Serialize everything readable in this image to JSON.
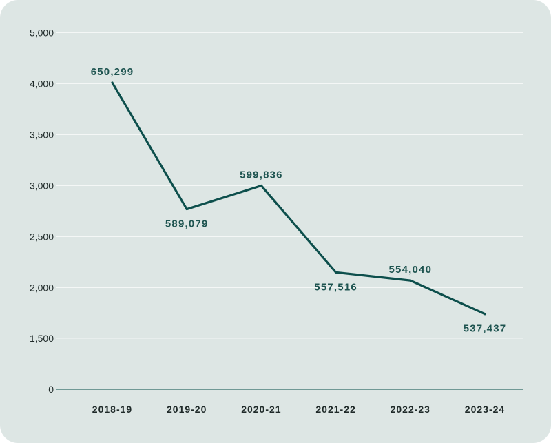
{
  "chart_data": {
    "type": "line",
    "categories": [
      "2018-19",
      "2019-20",
      "2020-21",
      "2021-22",
      "2022-23",
      "2023-24"
    ],
    "series": [
      {
        "values": [
          4020,
          2770,
          3000,
          2150,
          2070,
          1740
        ],
        "data_labels": [
          "650,299",
          "589,079",
          "599,836",
          "557,516",
          "554,040",
          "537,437"
        ],
        "label_positions": [
          "above",
          "below",
          "above",
          "below",
          "above",
          "below"
        ]
      }
    ],
    "y_ticks": [
      {
        "value": 0,
        "label": "0"
      },
      {
        "value": 1500,
        "label": "1,500"
      },
      {
        "value": 2000,
        "label": "2,000"
      },
      {
        "value": 2500,
        "label": "2,500"
      },
      {
        "value": 3000,
        "label": "3,000"
      },
      {
        "value": 3500,
        "label": "3,500"
      },
      {
        "value": 4000,
        "label": "4,000"
      },
      {
        "value": 5000,
        "label": "5,000"
      }
    ],
    "title": "",
    "xlabel": "",
    "ylabel": "",
    "grid": true,
    "colors": {
      "line": "#0d4f4c",
      "grid": "#f4f7f6",
      "axis": "#2f6b66",
      "background": "#dde6e4"
    }
  }
}
